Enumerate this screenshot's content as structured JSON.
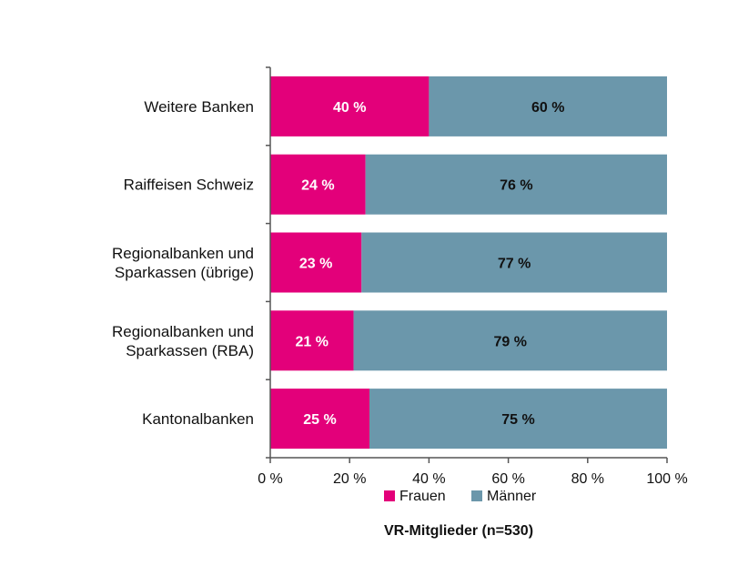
{
  "chart_data": {
    "type": "bar",
    "orientation": "horizontal",
    "stacked": true,
    "categories": [
      "Weitere Banken",
      "Raiffeisen Schweiz",
      "Regionalbanken und Sparkassen (übrige)",
      "Regionalbanken und Sparkassen (RBA)",
      "Kantonalbanken"
    ],
    "category_lines": [
      [
        "Weitere Banken"
      ],
      [
        "Raiffeisen Schweiz"
      ],
      [
        "Regionalbanken und",
        "Sparkassen (übrige)"
      ],
      [
        "Regionalbanken und",
        "Sparkassen (RBA)"
      ],
      [
        "Kantonalbanken"
      ]
    ],
    "series": [
      {
        "name": "Frauen",
        "color": "#e3007a",
        "label_color": "#ffffff",
        "values": [
          40,
          24,
          23,
          21,
          25
        ],
        "labels": [
          "40 %",
          "24 %",
          "23 %",
          "21 %",
          "25 %"
        ]
      },
      {
        "name": "Männer",
        "color": "#6b97ab",
        "label_color": "#111111",
        "values": [
          60,
          76,
          77,
          79,
          75
        ],
        "labels": [
          "60 %",
          "76 %",
          "77 %",
          "79 %",
          "75 %"
        ]
      }
    ],
    "xlim": [
      0,
      100
    ],
    "xticks": [
      0,
      20,
      40,
      60,
      80,
      100
    ],
    "xtick_labels": [
      "0 %",
      "20 %",
      "40 %",
      "60 %",
      "80 %",
      "100 %"
    ],
    "legend_position": "bottom",
    "caption": "VR-Mitglieder (n=530)",
    "grid": false
  }
}
